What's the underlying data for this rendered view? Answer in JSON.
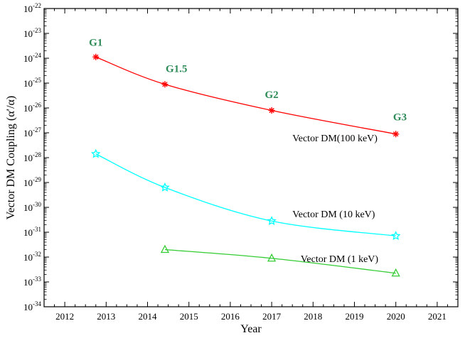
{
  "chart_data": {
    "type": "line",
    "xlabel": "Year",
    "ylabel": "Vector DM Coupling (α′/α)",
    "xlim": [
      2011.5,
      2021.5
    ],
    "ylim_log10": [
      -34,
      -22
    ],
    "yscale": "log",
    "x_ticks": [
      2012,
      2013,
      2014,
      2015,
      2016,
      2017,
      2018,
      2019,
      2020,
      2021
    ],
    "y_ticks_exp": [
      -34,
      -33,
      -32,
      -31,
      -30,
      -29,
      -28,
      -27,
      -26,
      -25,
      -24,
      -23,
      -22
    ],
    "y_tick_base": "10",
    "series": [
      {
        "name": "Vector DM(100 keV)",
        "color": "#ff0000",
        "marker": "asterisk",
        "x": [
          2012.75,
          2014.42,
          2017.0,
          2020.0
        ],
        "log10y": [
          -23.95,
          -25.05,
          -26.1,
          -27.05
        ],
        "label_at": [
          2017.5,
          -27.2
        ]
      },
      {
        "name": "Vector DM (10 keV)",
        "color": "#00ffff",
        "marker": "star",
        "x": [
          2012.75,
          2014.42,
          2017.0,
          2020.0
        ],
        "log10y": [
          -27.85,
          -29.2,
          -30.55,
          -31.15
        ],
        "label_at": [
          2017.5,
          -30.25
        ]
      },
      {
        "name": "Vector DM (1 keV)",
        "color": "#33cc33",
        "marker": "triangle",
        "x": [
          2014.42,
          2017.0,
          2020.0
        ],
        "log10y": [
          -31.7,
          -32.05,
          -32.65
        ],
        "label_at": [
          2017.7,
          -32.05
        ]
      }
    ],
    "annotations": [
      {
        "text": "G1",
        "x": 2012.75,
        "log10y": -23.5
      },
      {
        "text": "G1.5",
        "x": 2014.7,
        "log10y": -24.55
      },
      {
        "text": "G2",
        "x": 2017.0,
        "log10y": -25.6
      },
      {
        "text": "G3",
        "x": 2020.1,
        "log10y": -26.5
      }
    ],
    "annotation_color": "#2e8b57"
  }
}
